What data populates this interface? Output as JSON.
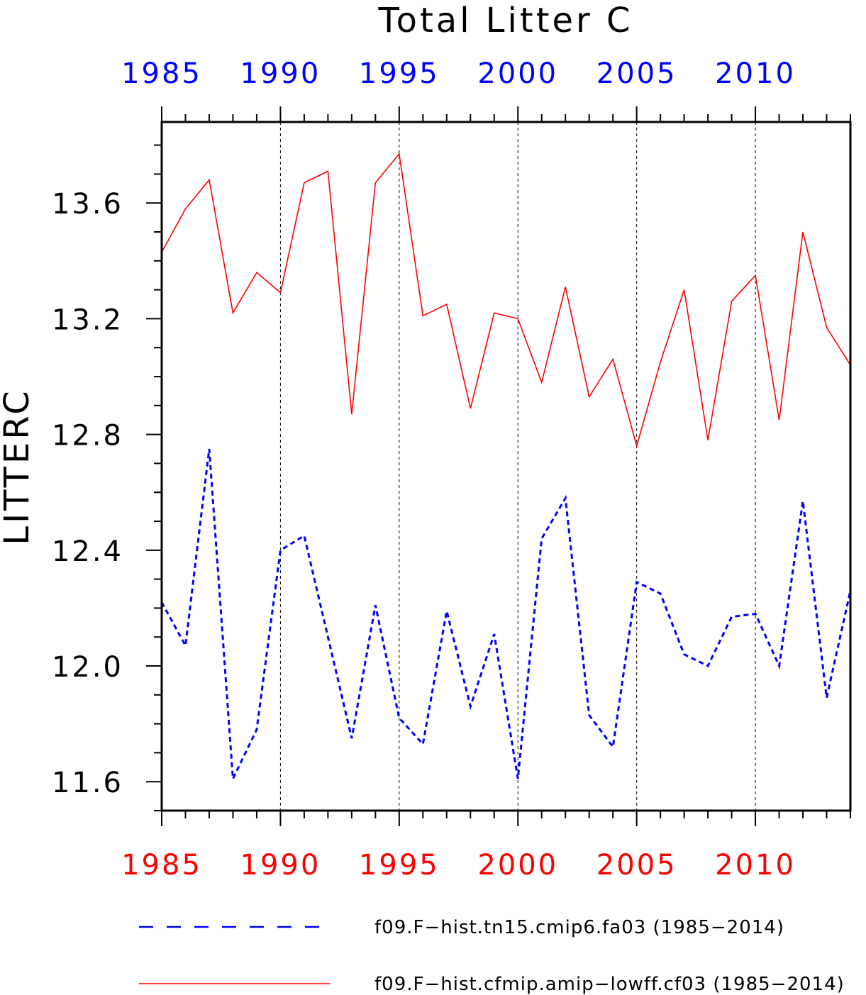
{
  "chart_data": {
    "type": "line",
    "title": "Total Litter C",
    "ylabel": "LITTERC",
    "xlabel": "",
    "xlim": [
      1985,
      2014
    ],
    "ylim": [
      11.5,
      13.88
    ],
    "xticks": [
      1985,
      1990,
      1995,
      2000,
      2005,
      2010
    ],
    "xtick_labels_top": [
      "1985",
      "1990",
      "1995",
      "2000",
      "2005",
      "2010"
    ],
    "xtick_labels_bottom": [
      "1985",
      "1990",
      "1995",
      "2000",
      "2005",
      "2010"
    ],
    "yticks": [
      11.6,
      12.0,
      12.4,
      12.8,
      13.2,
      13.6
    ],
    "ytick_labels": [
      "11.6",
      "12.0",
      "12.4",
      "12.8",
      "13.2",
      "13.6"
    ],
    "grid": "vertical dashed at major x ticks",
    "legend_position": "bottom",
    "x": [
      1985,
      1986,
      1987,
      1988,
      1989,
      1990,
      1991,
      1992,
      1993,
      1994,
      1995,
      1996,
      1997,
      1998,
      1999,
      2000,
      2001,
      2002,
      2003,
      2004,
      2005,
      2006,
      2007,
      2008,
      2009,
      2010,
      2011,
      2012,
      2013,
      2014
    ],
    "series": [
      {
        "name": "f09.F−hist.tn15.cmip6.fa03 (1985−2014)",
        "color": "#0000ff",
        "style": "dashed",
        "values": [
          12.22,
          12.07,
          12.75,
          11.61,
          11.78,
          12.4,
          12.45,
          12.1,
          11.75,
          12.21,
          11.82,
          11.73,
          12.19,
          11.86,
          12.11,
          11.61,
          12.44,
          12.58,
          11.83,
          11.72,
          12.29,
          12.25,
          12.04,
          12.0,
          12.17,
          12.18,
          12.0,
          12.57,
          11.89,
          12.26
        ]
      },
      {
        "name": "f09.F−hist.cfmip.amip−lowff.cf03 (1985−2014)",
        "color": "#ff0000",
        "style": "solid",
        "values": [
          13.43,
          13.58,
          13.68,
          13.22,
          13.36,
          13.29,
          13.67,
          13.71,
          12.87,
          13.67,
          13.77,
          13.21,
          13.25,
          12.89,
          13.22,
          13.2,
          12.98,
          13.31,
          12.93,
          13.06,
          12.76,
          13.05,
          13.3,
          12.78,
          13.26,
          13.35,
          12.85,
          13.5,
          13.17,
          13.04
        ]
      }
    ],
    "axis_colors": {
      "top_ticks": "#0000ff",
      "bottom_ticks": "#ff0000",
      "left_ticks": "#000000"
    }
  }
}
